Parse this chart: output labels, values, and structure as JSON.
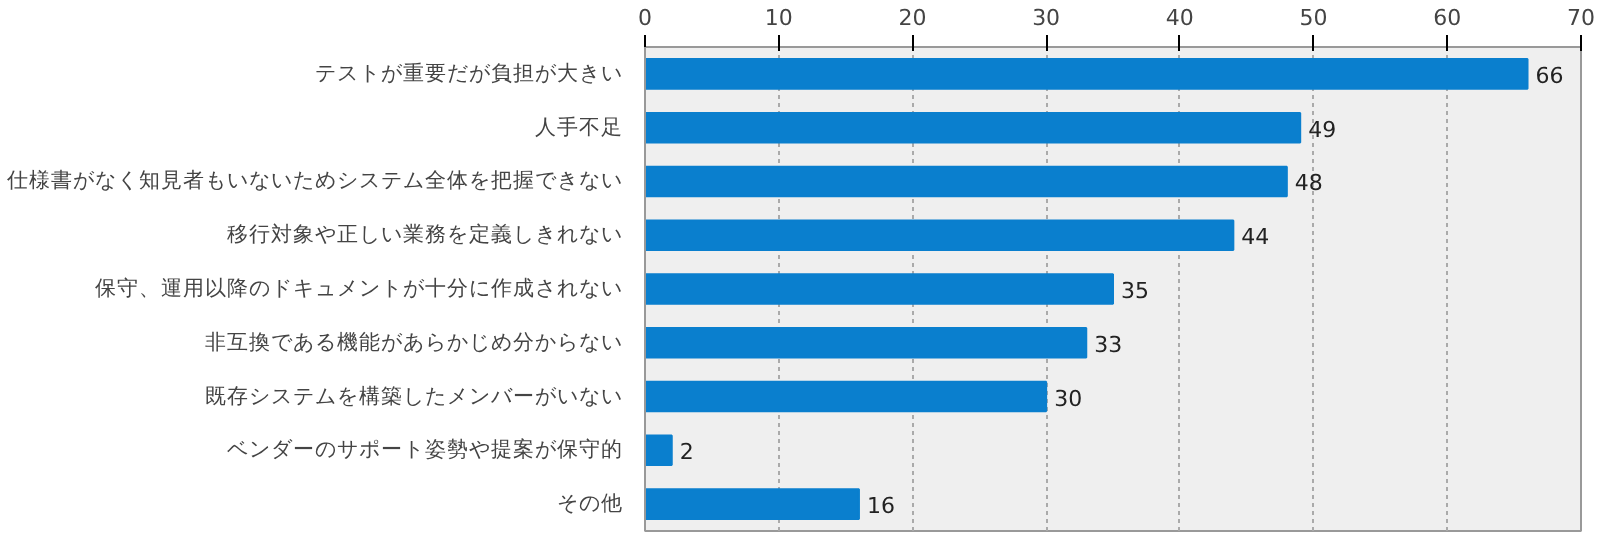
{
  "chart_data": {
    "type": "bar",
    "orientation": "horizontal",
    "categories": [
      "テストが重要だが負担が大きい",
      "人手不足",
      "仕様書がなく知見者もいないためシステム全体を把握できない",
      "移行対象や正しい業務を定義しきれない",
      "保守、運用以降のドキュメントが十分に作成されない",
      "非互換である機能があらかじめ分からない",
      "既存システムを構築したメンバーがいない",
      "ベンダーのサポート姿勢や提案が保守的",
      "その他"
    ],
    "values": [
      66,
      49,
      48,
      44,
      35,
      33,
      30,
      2,
      16
    ],
    "color": "#0a7fce",
    "xlim": [
      0,
      70
    ],
    "xticks": [
      0,
      10,
      20,
      30,
      40,
      50,
      60,
      70
    ],
    "grid": "x",
    "data_labels": true
  }
}
